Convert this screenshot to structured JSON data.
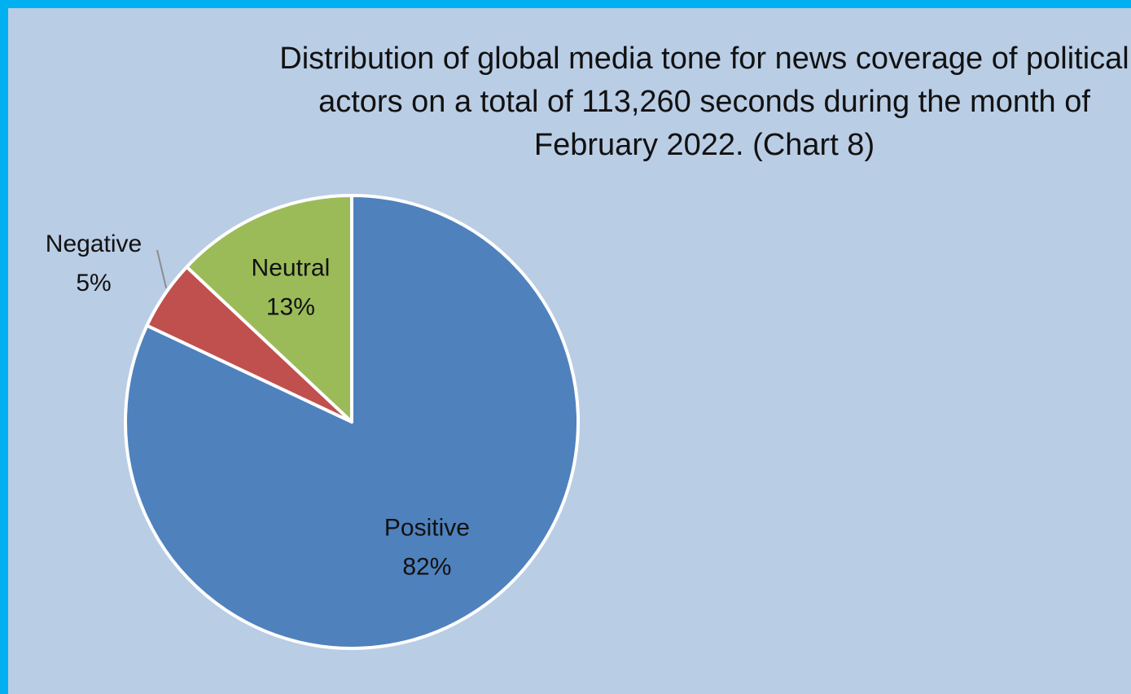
{
  "chart_data": {
    "type": "pie",
    "title": "Distribution of global media tone for news coverage of political actors on a total of 113,260 seconds during the month of February 2022. (Chart 8)",
    "slices": [
      {
        "label": "Positive",
        "value": 82,
        "value_label": "82%",
        "color": "#4f81bd"
      },
      {
        "label": "Negative",
        "value": 5,
        "value_label": "5%",
        "color": "#c0504d"
      },
      {
        "label": "Neutral",
        "value": 13,
        "value_label": "13%",
        "color": "#9bbb59"
      }
    ],
    "legend": "none",
    "data_labels": "category-and-percent"
  },
  "colors": {
    "border": "#00b0f0",
    "plot_background": "#b9cde5",
    "slice_outline": "#ffffff"
  }
}
